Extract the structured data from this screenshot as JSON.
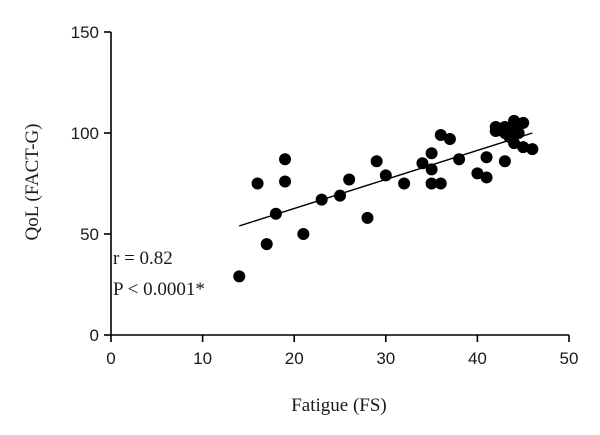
{
  "chart_data": {
    "type": "scatter",
    "xlabel": "Fatigue (FS)",
    "ylabel": "QoL (FACT-G)",
    "xlim": [
      0,
      50
    ],
    "ylim": [
      0,
      150
    ],
    "x_ticks": [
      0,
      10,
      20,
      30,
      40,
      50
    ],
    "y_ticks": [
      0,
      50,
      100,
      150
    ],
    "x_tick_labels": [
      "0",
      "10",
      "20",
      "30",
      "40",
      "50"
    ],
    "y_tick_labels": [
      "0",
      "50",
      "100",
      "150"
    ],
    "grid": false,
    "points": [
      {
        "x": 14,
        "y": 29
      },
      {
        "x": 16,
        "y": 75
      },
      {
        "x": 17,
        "y": 45
      },
      {
        "x": 18,
        "y": 60
      },
      {
        "x": 19,
        "y": 87
      },
      {
        "x": 19,
        "y": 76
      },
      {
        "x": 21,
        "y": 50
      },
      {
        "x": 23,
        "y": 67
      },
      {
        "x": 25,
        "y": 69
      },
      {
        "x": 26,
        "y": 77
      },
      {
        "x": 28,
        "y": 58
      },
      {
        "x": 29,
        "y": 86
      },
      {
        "x": 30,
        "y": 79
      },
      {
        "x": 32,
        "y": 75
      },
      {
        "x": 34,
        "y": 85
      },
      {
        "x": 35,
        "y": 75
      },
      {
        "x": 35,
        "y": 82
      },
      {
        "x": 35,
        "y": 90
      },
      {
        "x": 36,
        "y": 75
      },
      {
        "x": 36,
        "y": 99
      },
      {
        "x": 37,
        "y": 97
      },
      {
        "x": 38,
        "y": 87
      },
      {
        "x": 40,
        "y": 80
      },
      {
        "x": 41,
        "y": 78
      },
      {
        "x": 41,
        "y": 88
      },
      {
        "x": 42,
        "y": 103
      },
      {
        "x": 42,
        "y": 101
      },
      {
        "x": 43,
        "y": 86
      },
      {
        "x": 43,
        "y": 103
      },
      {
        "x": 43,
        "y": 100
      },
      {
        "x": 43.5,
        "y": 98
      },
      {
        "x": 44,
        "y": 106
      },
      {
        "x": 44,
        "y": 102
      },
      {
        "x": 44,
        "y": 95
      },
      {
        "x": 44.5,
        "y": 100
      },
      {
        "x": 45,
        "y": 105
      },
      {
        "x": 45,
        "y": 93
      },
      {
        "x": 46,
        "y": 92
      }
    ],
    "fit_line": {
      "x": [
        14,
        46
      ],
      "y": [
        54,
        100
      ]
    },
    "annotations": [
      "r = 0.82",
      "P < 0.0001*"
    ]
  }
}
